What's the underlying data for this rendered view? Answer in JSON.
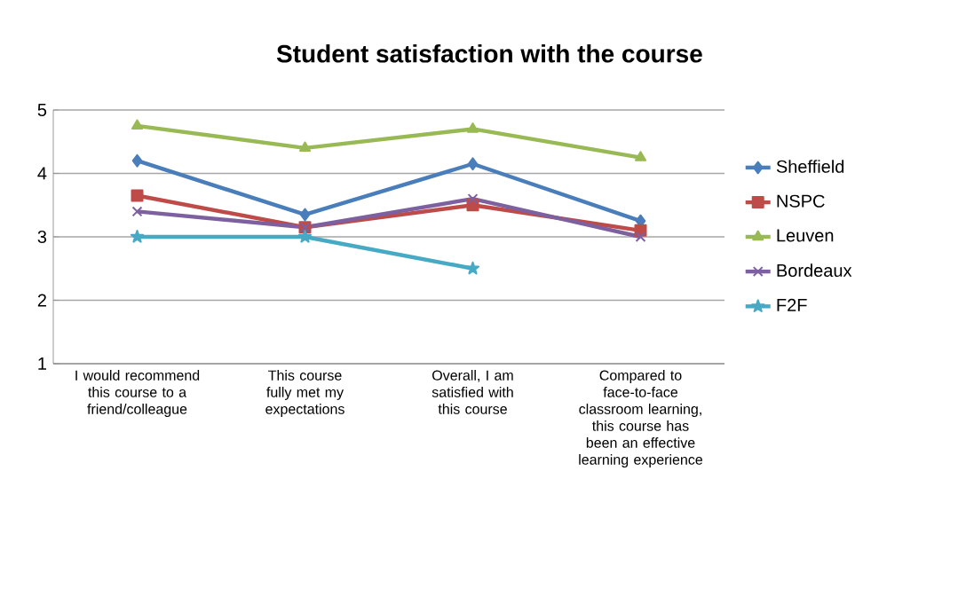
{
  "chart_data": {
    "type": "line",
    "title": "Student satisfaction with the course",
    "categories": [
      "I would recommend this course to a friend/colleague",
      "This course fully met my expectations",
      "Overall, I am satisfied with this course",
      "Compared to face-to-face classroom learning, this course has been an effective learning experience"
    ],
    "series": [
      {
        "name": "Sheffield",
        "color": "#4a7ebb",
        "marker": "diamond",
        "values": [
          4.2,
          3.35,
          4.15,
          3.25
        ]
      },
      {
        "name": "NSPC",
        "color": "#be4b48",
        "marker": "square",
        "values": [
          3.65,
          3.15,
          3.5,
          3.1
        ]
      },
      {
        "name": "Leuven",
        "color": "#98b954",
        "marker": "triangle",
        "values": [
          4.75,
          4.4,
          4.7,
          4.25
        ]
      },
      {
        "name": "Bordeaux",
        "color": "#7d60a0",
        "marker": "cross",
        "values": [
          3.4,
          3.15,
          3.6,
          3.0
        ]
      },
      {
        "name": "F2F",
        "color": "#46aac5",
        "marker": "star",
        "values": [
          3.0,
          3.0,
          2.5,
          null
        ]
      }
    ],
    "ylim": [
      1,
      5
    ],
    "yticks": [
      1,
      2,
      3,
      4,
      5
    ],
    "grid": "y",
    "legend": "right"
  }
}
